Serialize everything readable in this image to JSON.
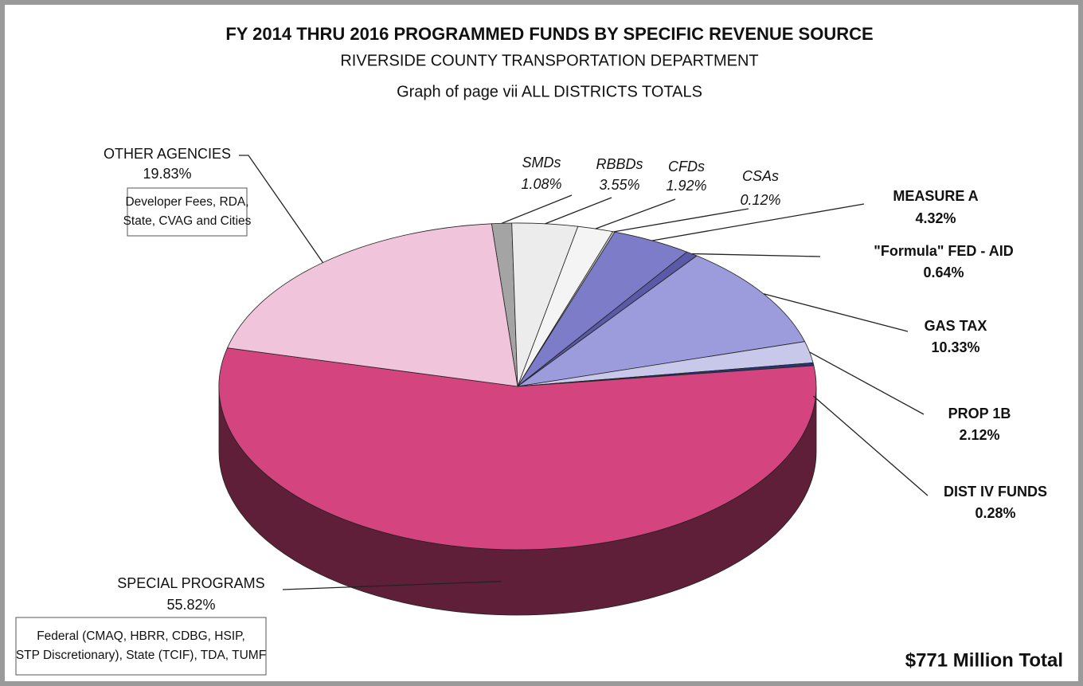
{
  "chart_data": {
    "type": "pie",
    "title": "FY 2014 THRU 2016 PROGRAMMED FUNDS  BY SPECIFIC REVENUE SOURCE",
    "subtitle": "RIVERSIDE COUNTY TRANSPORTATION DEPARTMENT",
    "subtitle2": "Graph of page vii  ALL DISTRICTS TOTALS",
    "categories": [
      "SMDs",
      "RBBDs",
      "CFDs",
      "CSAs",
      "MEASURE A",
      "\"Formula\" FED - AID",
      "GAS TAX",
      "PROP 1B",
      "DIST IV FUNDS",
      "SPECIAL PROGRAMS",
      "OTHER AGENCIES"
    ],
    "values": [
      1.08,
      3.55,
      1.92,
      0.12,
      4.32,
      0.64,
      10.33,
      2.12,
      0.28,
      55.82,
      19.83
    ],
    "value_labels": [
      "1.08%",
      "3.55%",
      "1.92%",
      "0.12%",
      "4.32%",
      "0.64%",
      "10.33%",
      "2.12%",
      "0.28%",
      "55.82%",
      "19.83%"
    ],
    "colors": [
      "#a4a4a4",
      "#ececec",
      "#f4f4f4",
      "#c8c8c8",
      "#7c7cc8",
      "#5a5aa8",
      "#9c9cdc",
      "#c8c8ea",
      "#263672",
      "#d4447f",
      "#f0c4da"
    ],
    "boxes": [
      {
        "lines": [
          "Developer Fees, RDA,",
          "State, CVAG and Cities"
        ]
      },
      {
        "lines": [
          "Federal (CMAQ, HBRR, CDBG, HSIP,",
          "STP Discretionary), State (TCIF), TDA, TUMF"
        ]
      }
    ],
    "total_label": "$771 Million Total"
  }
}
